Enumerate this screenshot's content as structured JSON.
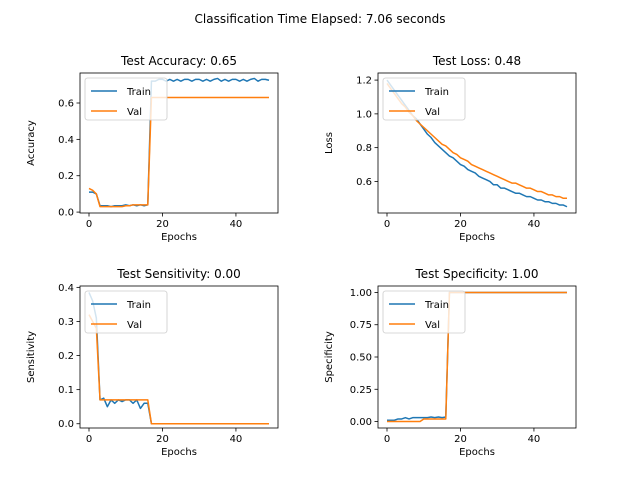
{
  "figure": {
    "suptitle": "Classification Time Elapsed: 7.06 seconds"
  },
  "colors": {
    "train": "#1f77b4",
    "val": "#ff7f0e",
    "axes": "#000000",
    "legend_border": "#cccccc",
    "background": "#ffffff"
  },
  "chart_data": [
    {
      "type": "line",
      "title": "Test Accuracy: 0.65",
      "xlabel": "Epochs",
      "ylabel": "Accuracy",
      "xlim": [
        -2.45,
        51.45
      ],
      "ylim": [
        -0.005,
        0.765
      ],
      "xticks": [
        0,
        20,
        40
      ],
      "yticks": [
        0.0,
        0.2,
        0.4,
        0.6
      ],
      "ytick_labels": [
        "0.0",
        "0.2",
        "0.4",
        "0.6"
      ],
      "legend": "upper left",
      "x": [
        0,
        1,
        2,
        3,
        4,
        5,
        6,
        7,
        8,
        9,
        10,
        11,
        12,
        13,
        14,
        15,
        16,
        17,
        18,
        19,
        20,
        21,
        22,
        23,
        24,
        25,
        26,
        27,
        28,
        29,
        30,
        31,
        32,
        33,
        34,
        35,
        36,
        37,
        38,
        39,
        40,
        41,
        42,
        43,
        44,
        45,
        46,
        47,
        48,
        49
      ],
      "series": [
        {
          "name": "Train",
          "values": [
            0.11,
            0.11,
            0.1,
            0.035,
            0.035,
            0.035,
            0.03,
            0.035,
            0.035,
            0.035,
            0.04,
            0.035,
            0.04,
            0.035,
            0.04,
            0.035,
            0.04,
            0.72,
            0.72,
            0.73,
            0.73,
            0.72,
            0.73,
            0.72,
            0.73,
            0.72,
            0.73,
            0.73,
            0.72,
            0.73,
            0.73,
            0.72,
            0.73,
            0.72,
            0.73,
            0.735,
            0.72,
            0.73,
            0.72,
            0.73,
            0.73,
            0.72,
            0.73,
            0.72,
            0.73,
            0.735,
            0.72,
            0.73,
            0.73,
            0.725
          ]
        },
        {
          "name": "Val",
          "values": [
            0.13,
            0.12,
            0.1,
            0.03,
            0.03,
            0.03,
            0.03,
            0.03,
            0.03,
            0.03,
            0.035,
            0.035,
            0.04,
            0.04,
            0.04,
            0.04,
            0.04,
            0.63,
            0.63,
            0.63,
            0.63,
            0.63,
            0.63,
            0.63,
            0.63,
            0.63,
            0.63,
            0.63,
            0.63,
            0.63,
            0.63,
            0.63,
            0.63,
            0.63,
            0.63,
            0.63,
            0.63,
            0.63,
            0.63,
            0.63,
            0.63,
            0.63,
            0.63,
            0.63,
            0.63,
            0.63,
            0.63,
            0.63,
            0.63,
            0.63
          ]
        }
      ]
    },
    {
      "type": "line",
      "title": "Test Loss: 0.48",
      "xlabel": "Epochs",
      "ylabel": "Loss",
      "xlim": [
        -2.45,
        51.45
      ],
      "ylim": [
        0.413,
        1.242
      ],
      "xticks": [
        0,
        20,
        40
      ],
      "yticks": [
        0.6,
        0.8,
        1.0,
        1.2
      ],
      "ytick_labels": [
        "0.6",
        "0.8",
        "1.0",
        "1.2"
      ],
      "legend": "upper left",
      "x": [
        0,
        1,
        2,
        3,
        4,
        5,
        6,
        7,
        8,
        9,
        10,
        11,
        12,
        13,
        14,
        15,
        16,
        17,
        18,
        19,
        20,
        21,
        22,
        23,
        24,
        25,
        26,
        27,
        28,
        29,
        30,
        31,
        32,
        33,
        34,
        35,
        36,
        37,
        38,
        39,
        40,
        41,
        42,
        43,
        44,
        45,
        46,
        47,
        48,
        49
      ],
      "series": [
        {
          "name": "Train",
          "values": [
            1.2,
            1.17,
            1.14,
            1.11,
            1.08,
            1.05,
            1.02,
            0.99,
            0.97,
            0.94,
            0.91,
            0.88,
            0.86,
            0.83,
            0.81,
            0.79,
            0.77,
            0.75,
            0.74,
            0.72,
            0.7,
            0.69,
            0.67,
            0.66,
            0.65,
            0.63,
            0.62,
            0.61,
            0.6,
            0.58,
            0.58,
            0.56,
            0.56,
            0.55,
            0.54,
            0.53,
            0.53,
            0.52,
            0.51,
            0.51,
            0.5,
            0.49,
            0.49,
            0.48,
            0.48,
            0.47,
            0.47,
            0.46,
            0.46,
            0.45
          ]
        },
        {
          "name": "Val",
          "values": [
            1.18,
            1.15,
            1.12,
            1.09,
            1.06,
            1.04,
            1.01,
            0.99,
            0.96,
            0.94,
            0.92,
            0.9,
            0.88,
            0.86,
            0.84,
            0.82,
            0.81,
            0.79,
            0.77,
            0.76,
            0.74,
            0.73,
            0.72,
            0.7,
            0.69,
            0.68,
            0.67,
            0.66,
            0.65,
            0.64,
            0.63,
            0.62,
            0.61,
            0.6,
            0.59,
            0.59,
            0.58,
            0.57,
            0.56,
            0.56,
            0.55,
            0.54,
            0.54,
            0.53,
            0.52,
            0.52,
            0.51,
            0.51,
            0.5,
            0.5
          ]
        }
      ]
    },
    {
      "type": "line",
      "title": "Test Sensitivity: 0.00",
      "xlabel": "Epochs",
      "ylabel": "Sensitivity",
      "xlim": [
        -2.45,
        51.45
      ],
      "ylim": [
        -0.0125,
        0.404
      ],
      "xticks": [
        0,
        20,
        40
      ],
      "yticks": [
        0.0,
        0.1,
        0.2,
        0.3,
        0.4
      ],
      "ytick_labels": [
        "0.0",
        "0.1",
        "0.2",
        "0.3",
        "0.4"
      ],
      "legend": "upper left",
      "x": [
        0,
        1,
        2,
        3,
        4,
        5,
        6,
        7,
        8,
        9,
        10,
        11,
        12,
        13,
        14,
        15,
        16,
        17,
        18,
        19,
        20,
        21,
        22,
        23,
        24,
        25,
        26,
        27,
        28,
        29,
        30,
        31,
        32,
        33,
        34,
        35,
        36,
        37,
        38,
        39,
        40,
        41,
        42,
        43,
        44,
        45,
        46,
        47,
        48,
        49
      ],
      "series": [
        {
          "name": "Train",
          "values": [
            0.385,
            0.36,
            0.31,
            0.07,
            0.075,
            0.05,
            0.07,
            0.06,
            0.07,
            0.065,
            0.07,
            0.07,
            0.06,
            0.07,
            0.045,
            0.06,
            0.06,
            0.0,
            0.0,
            0.0,
            0.0,
            0.0,
            0.0,
            0.0,
            0.0,
            0.0,
            0.0,
            0.0,
            0.0,
            0.0,
            0.0,
            0.0,
            0.0,
            0.0,
            0.0,
            0.0,
            0.0,
            0.0,
            0.0,
            0.0,
            0.0,
            0.0,
            0.0,
            0.0,
            0.0,
            0.0,
            0.0,
            0.0,
            0.0,
            0.0
          ]
        },
        {
          "name": "Val",
          "values": [
            0.32,
            0.3,
            0.28,
            0.07,
            0.07,
            0.07,
            0.07,
            0.07,
            0.07,
            0.07,
            0.07,
            0.07,
            0.07,
            0.07,
            0.07,
            0.07,
            0.07,
            0.0,
            0.0,
            0.0,
            0.0,
            0.0,
            0.0,
            0.0,
            0.0,
            0.0,
            0.0,
            0.0,
            0.0,
            0.0,
            0.0,
            0.0,
            0.0,
            0.0,
            0.0,
            0.0,
            0.0,
            0.0,
            0.0,
            0.0,
            0.0,
            0.0,
            0.0,
            0.0,
            0.0,
            0.0,
            0.0,
            0.0,
            0.0,
            0.0
          ]
        }
      ]
    },
    {
      "type": "line",
      "title": "Test Specificity: 1.00",
      "xlabel": "Epochs",
      "ylabel": "Specificity",
      "xlim": [
        -2.45,
        51.45
      ],
      "ylim": [
        -0.05,
        1.05
      ],
      "xticks": [
        0,
        20,
        40
      ],
      "yticks": [
        0.0,
        0.25,
        0.5,
        0.75,
        1.0
      ],
      "ytick_labels": [
        "0.00",
        "0.25",
        "0.50",
        "0.75",
        "1.00"
      ],
      "legend": "upper left",
      "x": [
        0,
        1,
        2,
        3,
        4,
        5,
        6,
        7,
        8,
        9,
        10,
        11,
        12,
        13,
        14,
        15,
        16,
        17,
        18,
        19,
        20,
        21,
        22,
        23,
        24,
        25,
        26,
        27,
        28,
        29,
        30,
        31,
        32,
        33,
        34,
        35,
        36,
        37,
        38,
        39,
        40,
        41,
        42,
        43,
        44,
        45,
        46,
        47,
        48,
        49
      ],
      "series": [
        {
          "name": "Train",
          "values": [
            0.01,
            0.01,
            0.01,
            0.02,
            0.02,
            0.03,
            0.02,
            0.03,
            0.03,
            0.03,
            0.03,
            0.03,
            0.035,
            0.03,
            0.035,
            0.03,
            0.035,
            1.0,
            1.0,
            1.0,
            1.0,
            1.0,
            1.0,
            1.0,
            1.0,
            1.0,
            1.0,
            1.0,
            1.0,
            1.0,
            1.0,
            1.0,
            1.0,
            1.0,
            1.0,
            1.0,
            1.0,
            1.0,
            1.0,
            1.0,
            1.0,
            1.0,
            1.0,
            1.0,
            1.0,
            1.0,
            1.0,
            1.0,
            1.0,
            1.0
          ]
        },
        {
          "name": "Val",
          "values": [
            0.0,
            0.0,
            0.0,
            0.0,
            0.0,
            0.0,
            0.0,
            0.0,
            0.0,
            0.0,
            0.02,
            0.02,
            0.02,
            0.02,
            0.02,
            0.02,
            0.02,
            1.0,
            1.0,
            1.0,
            1.0,
            1.0,
            1.0,
            1.0,
            1.0,
            1.0,
            1.0,
            1.0,
            1.0,
            1.0,
            1.0,
            1.0,
            1.0,
            1.0,
            1.0,
            1.0,
            1.0,
            1.0,
            1.0,
            1.0,
            1.0,
            1.0,
            1.0,
            1.0,
            1.0,
            1.0,
            1.0,
            1.0,
            1.0,
            1.0
          ]
        }
      ]
    }
  ]
}
